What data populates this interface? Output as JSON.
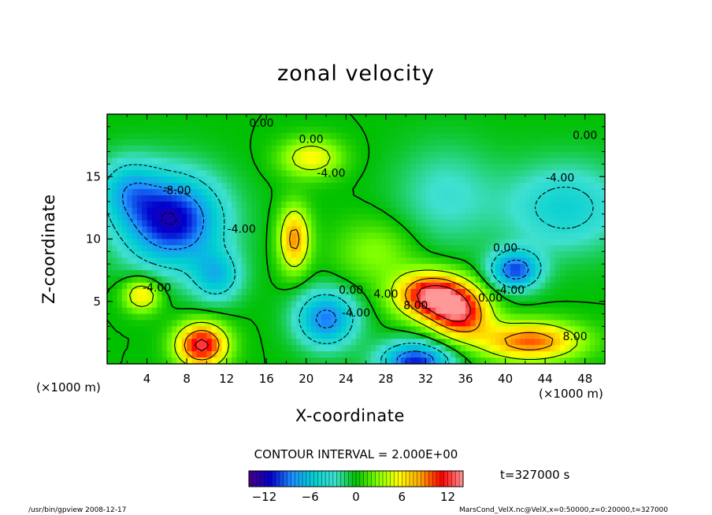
{
  "chart_data": {
    "type": "heatmap",
    "title": "zonal velocity",
    "xlabel": "X-coordinate",
    "ylabel": "Z-coordinate",
    "x_unit": "(×1000 m)",
    "z_unit": "(×1000 m)",
    "xlim": [
      0,
      50
    ],
    "ylim": [
      0,
      20
    ],
    "x_ticks": [
      4,
      8,
      12,
      16,
      20,
      24,
      28,
      32,
      36,
      40,
      44,
      48
    ],
    "y_ticks": [
      5,
      10,
      15
    ],
    "contour_interval_text": "CONTOUR INTERVAL = 2.000E+00",
    "contour_labels": [
      {
        "text": "0.00",
        "x": 15.5,
        "z": 19.0
      },
      {
        "text": "0.00",
        "x": 20.5,
        "z": 17.7
      },
      {
        "text": "0.00",
        "x": 48.0,
        "z": 18.0
      },
      {
        "text": "-8.00",
        "x": 7.0,
        "z": 13.6
      },
      {
        "text": "-4.00",
        "x": 13.5,
        "z": 10.5
      },
      {
        "text": "-4.00",
        "x": 22.5,
        "z": 15.0
      },
      {
        "text": "-4.00",
        "x": 45.5,
        "z": 14.6
      },
      {
        "text": "-4.00",
        "x": 5.0,
        "z": 5.8
      },
      {
        "text": "0.00",
        "x": 24.5,
        "z": 5.6
      },
      {
        "text": "4.00",
        "x": 28.0,
        "z": 5.3
      },
      {
        "text": "-4.00",
        "x": 25.0,
        "z": 3.8
      },
      {
        "text": "8.00",
        "x": 31.0,
        "z": 4.4
      },
      {
        "text": "0.00",
        "x": 40.0,
        "z": 9.0
      },
      {
        "text": "-4.00",
        "x": 40.5,
        "z": 5.6
      },
      {
        "text": "0.00",
        "x": 38.5,
        "z": 5.0
      },
      {
        "text": "8.00",
        "x": 47.0,
        "z": 1.9
      }
    ],
    "colorbar": {
      "min": -14,
      "max": 14,
      "ticks": [
        -12,
        -6,
        0,
        6,
        12
      ],
      "tick_labels": [
        "−12",
        "−6",
        "0",
        "6",
        "12"
      ],
      "colors": [
        "#4b0082",
        "#0000cd",
        "#1e90ff",
        "#00ced1",
        "#40e0d0",
        "#00c000",
        "#7fff00",
        "#ffff00",
        "#ffa500",
        "#ff0000",
        "#ff9999"
      ]
    },
    "features": [
      {
        "x": 6.5,
        "z": 11.5,
        "u": -12,
        "sx": 5,
        "sz": 3.6
      },
      {
        "x": 2.0,
        "z": 14,
        "u": -5,
        "sx": 3,
        "sz": 2.5
      },
      {
        "x": 11.0,
        "z": 7.0,
        "u": -6,
        "sx": 2.5,
        "sz": 2
      },
      {
        "x": 9.5,
        "z": 1.5,
        "u": 13,
        "sx": 2.5,
        "sz": 1.7
      },
      {
        "x": 3.5,
        "z": 5.5,
        "u": 7,
        "sx": 1.8,
        "sz": 1.3
      },
      {
        "x": 18.8,
        "z": 10.0,
        "u": 9,
        "sx": 1.5,
        "sz": 2.5
      },
      {
        "x": 20.5,
        "z": 16.5,
        "u": 6,
        "sx": 3,
        "sz": 1.5
      },
      {
        "x": 22.0,
        "z": 3.6,
        "u": -9,
        "sx": 3,
        "sz": 2.2
      },
      {
        "x": 32.5,
        "z": 5.5,
        "u": 13,
        "sx": 3.5,
        "sz": 1.8
      },
      {
        "x": 35.5,
        "z": 4.0,
        "u": 11,
        "sx": 3,
        "sz": 2
      },
      {
        "x": 42.5,
        "z": 1.8,
        "u": 10,
        "sx": 5,
        "sz": 1.5
      },
      {
        "x": 31.0,
        "z": 0.2,
        "u": -11,
        "sx": 3.5,
        "sz": 1.5
      },
      {
        "x": 41.0,
        "z": 7.5,
        "u": -10,
        "sx": 2.5,
        "sz": 1.5
      },
      {
        "x": 46.0,
        "z": 12.5,
        "u": -5,
        "sx": 6,
        "sz": 3.5
      },
      {
        "x": 34.0,
        "z": 13.5,
        "u": -3,
        "sx": 5,
        "sz": 4
      },
      {
        "x": 27.0,
        "z": 9.0,
        "u": 3,
        "sx": 4,
        "sz": 2.5
      }
    ]
  },
  "time_text": "t=327000 s",
  "footer": {
    "program": "/usr/bin/gpview  2008-12-17",
    "file": "MarsCond_VelX.nc@VelX,x=0:50000,z=0:20000,t=327000"
  }
}
